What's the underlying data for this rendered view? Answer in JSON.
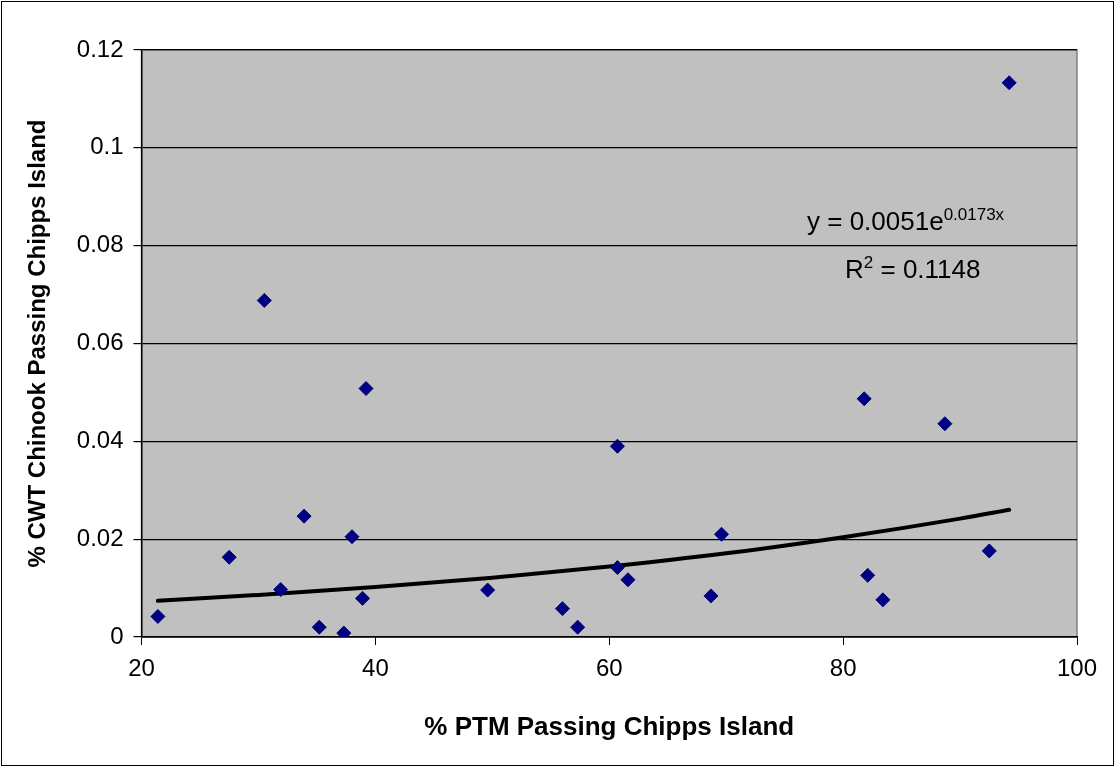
{
  "chart_data": {
    "type": "scatter",
    "xlabel": "% PTM Passing Chipps Island",
    "ylabel": "% CWT Chinook Passing Chipps Island",
    "xlim": [
      20,
      100
    ],
    "xticks": [
      20,
      40,
      60,
      80,
      100
    ],
    "ylim": [
      0,
      0.12
    ],
    "yticks": [
      0,
      0.02,
      0.04,
      0.06,
      0.08,
      0.1,
      0.12
    ],
    "grid": "y",
    "legend": false,
    "annotations": [
      "y = 0.0051e$^{0.0173x}$",
      "R$^{2}$ = 0.1148"
    ],
    "series": [
      {
        "color": "#000080",
        "marker": "diamond",
        "x": [
          21.4,
          27.5,
          30.5,
          31.9,
          33.9,
          35.2,
          37.3,
          38.0,
          38.9,
          39.2,
          49.6,
          56.0,
          57.3,
          60.7,
          60.7,
          61.6,
          68.7,
          69.6,
          81.8,
          82.1,
          83.4,
          88.7,
          92.5,
          94.2
        ],
        "values": [
          0.0042,
          0.0163,
          0.0688,
          0.0097,
          0.0247,
          0.002,
          0.0008,
          0.0205,
          0.0079,
          0.0508,
          0.0096,
          0.0058,
          0.002,
          0.039,
          0.0142,
          0.0117,
          0.0084,
          0.021,
          0.0487,
          0.0126,
          0.0076,
          0.0436,
          0.0176,
          0.1133
        ]
      },
      {
        "type": "line",
        "marker": "none",
        "color": "#000000",
        "x": [
          21.4,
          30,
          40,
          50,
          60,
          70,
          80,
          90,
          94.2
        ],
        "values": [
          0.0074,
          0.0086,
          0.0102,
          0.0121,
          0.0144,
          0.0171,
          0.0204,
          0.0242,
          0.026
        ]
      }
    ]
  }
}
